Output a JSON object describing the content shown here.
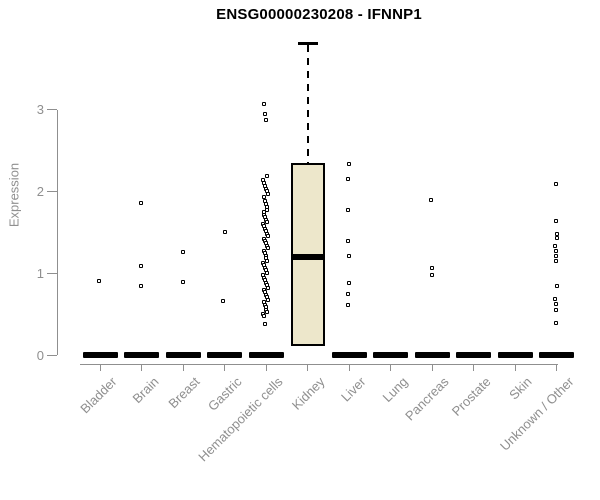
{
  "chart_data": {
    "type": "boxplot",
    "title": "ENSG00000230208 - IFNNP1",
    "ylabel": "Expression",
    "xlabel": "",
    "ylim": [
      0,
      3.95
    ],
    "yticks": [
      "0",
      "1",
      "2",
      "3"
    ],
    "grid": false,
    "legend": null,
    "categories": [
      "Bladder",
      "Brain",
      "Breast",
      "Gastric",
      "Hematopoietic cells",
      "Kidney",
      "Liver",
      "Lung",
      "Pancreas",
      "Prostate",
      "Skin",
      "Unknown / Other"
    ],
    "groups": [
      {
        "label": "Bladder",
        "zero_bar": true,
        "box": null,
        "points": [
          0.9
        ]
      },
      {
        "label": "Brain",
        "zero_bar": true,
        "box": null,
        "points": [
          1.85,
          1.08,
          0.84
        ]
      },
      {
        "label": "Breast",
        "zero_bar": true,
        "box": null,
        "points": [
          1.25,
          0.89
        ]
      },
      {
        "label": "Gastric",
        "zero_bar": true,
        "box": null,
        "points": [
          1.5,
          0.66
        ]
      },
      {
        "label": "Hematopoietic cells",
        "zero_bar": true,
        "box": null,
        "points": [
          3.07,
          2.95,
          2.87,
          2.18,
          2.14,
          2.1,
          2.06,
          2.03,
          2.0,
          1.97,
          1.93,
          1.88,
          1.84,
          1.8,
          1.77,
          1.74,
          1.71,
          1.68,
          1.65,
          1.62,
          1.6,
          1.57,
          1.54,
          1.51,
          1.48,
          1.45,
          1.42,
          1.39,
          1.36,
          1.33,
          1.3,
          1.27,
          1.24,
          1.21,
          1.18,
          1.15,
          1.12,
          1.09,
          1.06,
          1.03,
          1.0,
          0.97,
          0.94,
          0.91,
          0.88,
          0.85,
          0.82,
          0.79,
          0.76,
          0.73,
          0.7,
          0.67,
          0.64,
          0.61,
          0.58,
          0.55,
          0.52,
          0.49,
          0.47,
          0.37
        ]
      },
      {
        "label": "Kidney",
        "zero_bar": false,
        "box": {
          "whisker_high": 3.82,
          "q3": 2.35,
          "median": 1.2,
          "q1": 0.11
        },
        "points": []
      },
      {
        "label": "Liver",
        "zero_bar": true,
        "box": null,
        "points": [
          2.33,
          2.15,
          1.77,
          1.39,
          1.21,
          0.87,
          0.74,
          0.6
        ]
      },
      {
        "label": "Lung",
        "zero_bar": true,
        "box": null,
        "points": []
      },
      {
        "label": "Pancreas",
        "zero_bar": true,
        "box": null,
        "points": [
          1.89,
          1.06,
          0.97
        ]
      },
      {
        "label": "Prostate",
        "zero_bar": true,
        "box": null,
        "points": []
      },
      {
        "label": "Skin",
        "zero_bar": true,
        "box": null,
        "points": []
      },
      {
        "label": "Unknown / Other",
        "zero_bar": true,
        "box": null,
        "points": [
          2.09,
          1.64,
          1.47,
          1.43,
          1.33,
          1.27,
          1.21,
          1.15,
          0.84,
          0.68,
          0.62,
          0.55,
          0.39
        ]
      }
    ],
    "colors": {
      "axis": "#8f8f8f",
      "tick_text": "#8f8f8f",
      "title_text": "#000000",
      "box_fill": "#ede7cb",
      "ink": "#000000"
    }
  }
}
